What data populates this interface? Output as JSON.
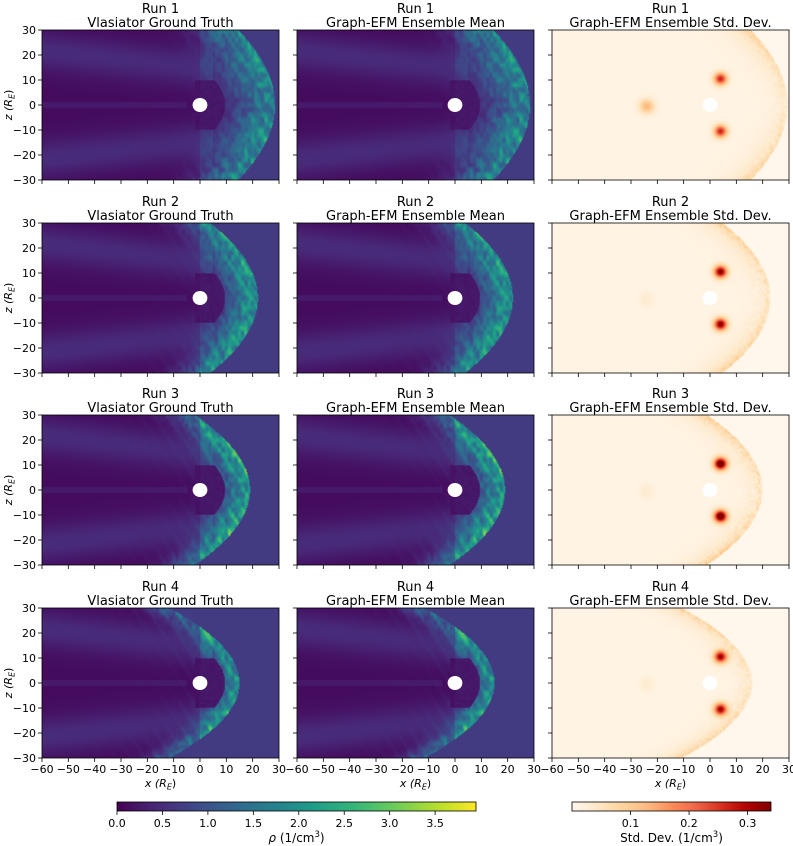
{
  "chart_data": {
    "type": "heatmap",
    "grid": {
      "rows": 4,
      "cols": 3
    },
    "x": {
      "label": "x (R",
      "label_sub": "E",
      "label_close": ")",
      "lim": [
        -60,
        30
      ],
      "ticks": [
        -60,
        -50,
        -40,
        -30,
        -20,
        -10,
        0,
        10,
        20,
        30
      ]
    },
    "y": {
      "label": "z (R",
      "label_sub": "E",
      "label_close": ")",
      "lim": [
        -30,
        30
      ],
      "ticks": [
        -30,
        -20,
        -10,
        0,
        10,
        20,
        30
      ]
    },
    "runs": [
      {
        "name": "Run 1",
        "bow_shock_nose": 28.5,
        "flank_gain": 1.0
      },
      {
        "name": "Run 2",
        "bow_shock_nose": 22.0,
        "flank_gain": 1.25
      },
      {
        "name": "Run 3",
        "bow_shock_nose": 19.0,
        "flank_gain": 1.45
      },
      {
        "name": "Run 4",
        "bow_shock_nose": 15.0,
        "flank_gain": 1.15
      }
    ],
    "columns": [
      {
        "title": "Vlasiator Ground Truth",
        "kind": "density"
      },
      {
        "title": "Graph-EFM Ensemble Mean",
        "kind": "density"
      },
      {
        "title": "Graph-EFM Ensemble Std. Dev.",
        "kind": "std"
      }
    ],
    "colorbars": [
      {
        "kind": "density",
        "colormap": "viridis",
        "range": [
          0,
          3.95
        ],
        "ticks": [
          "0.0",
          "0.5",
          "1.0",
          "1.5",
          "2.0",
          "2.5",
          "3.0",
          "3.5"
        ],
        "tick_values": [
          0,
          0.5,
          1.0,
          1.5,
          2.0,
          2.5,
          3.0,
          3.5
        ],
        "label": "ρ (1/cm",
        "label_sup": "3",
        "label_close": ")"
      },
      {
        "kind": "std",
        "colormap": "OrRd",
        "range": [
          0,
          0.34
        ],
        "ticks": [
          "0.1",
          "0.2",
          "0.3"
        ],
        "tick_values": [
          0.1,
          0.2,
          0.3
        ],
        "label": "Std. Dev. (1/cm",
        "label_sup": "3",
        "label_close": ")"
      }
    ],
    "earth_radius": 2.8,
    "background_density": 0.68,
    "tail_density": 0.15
  }
}
